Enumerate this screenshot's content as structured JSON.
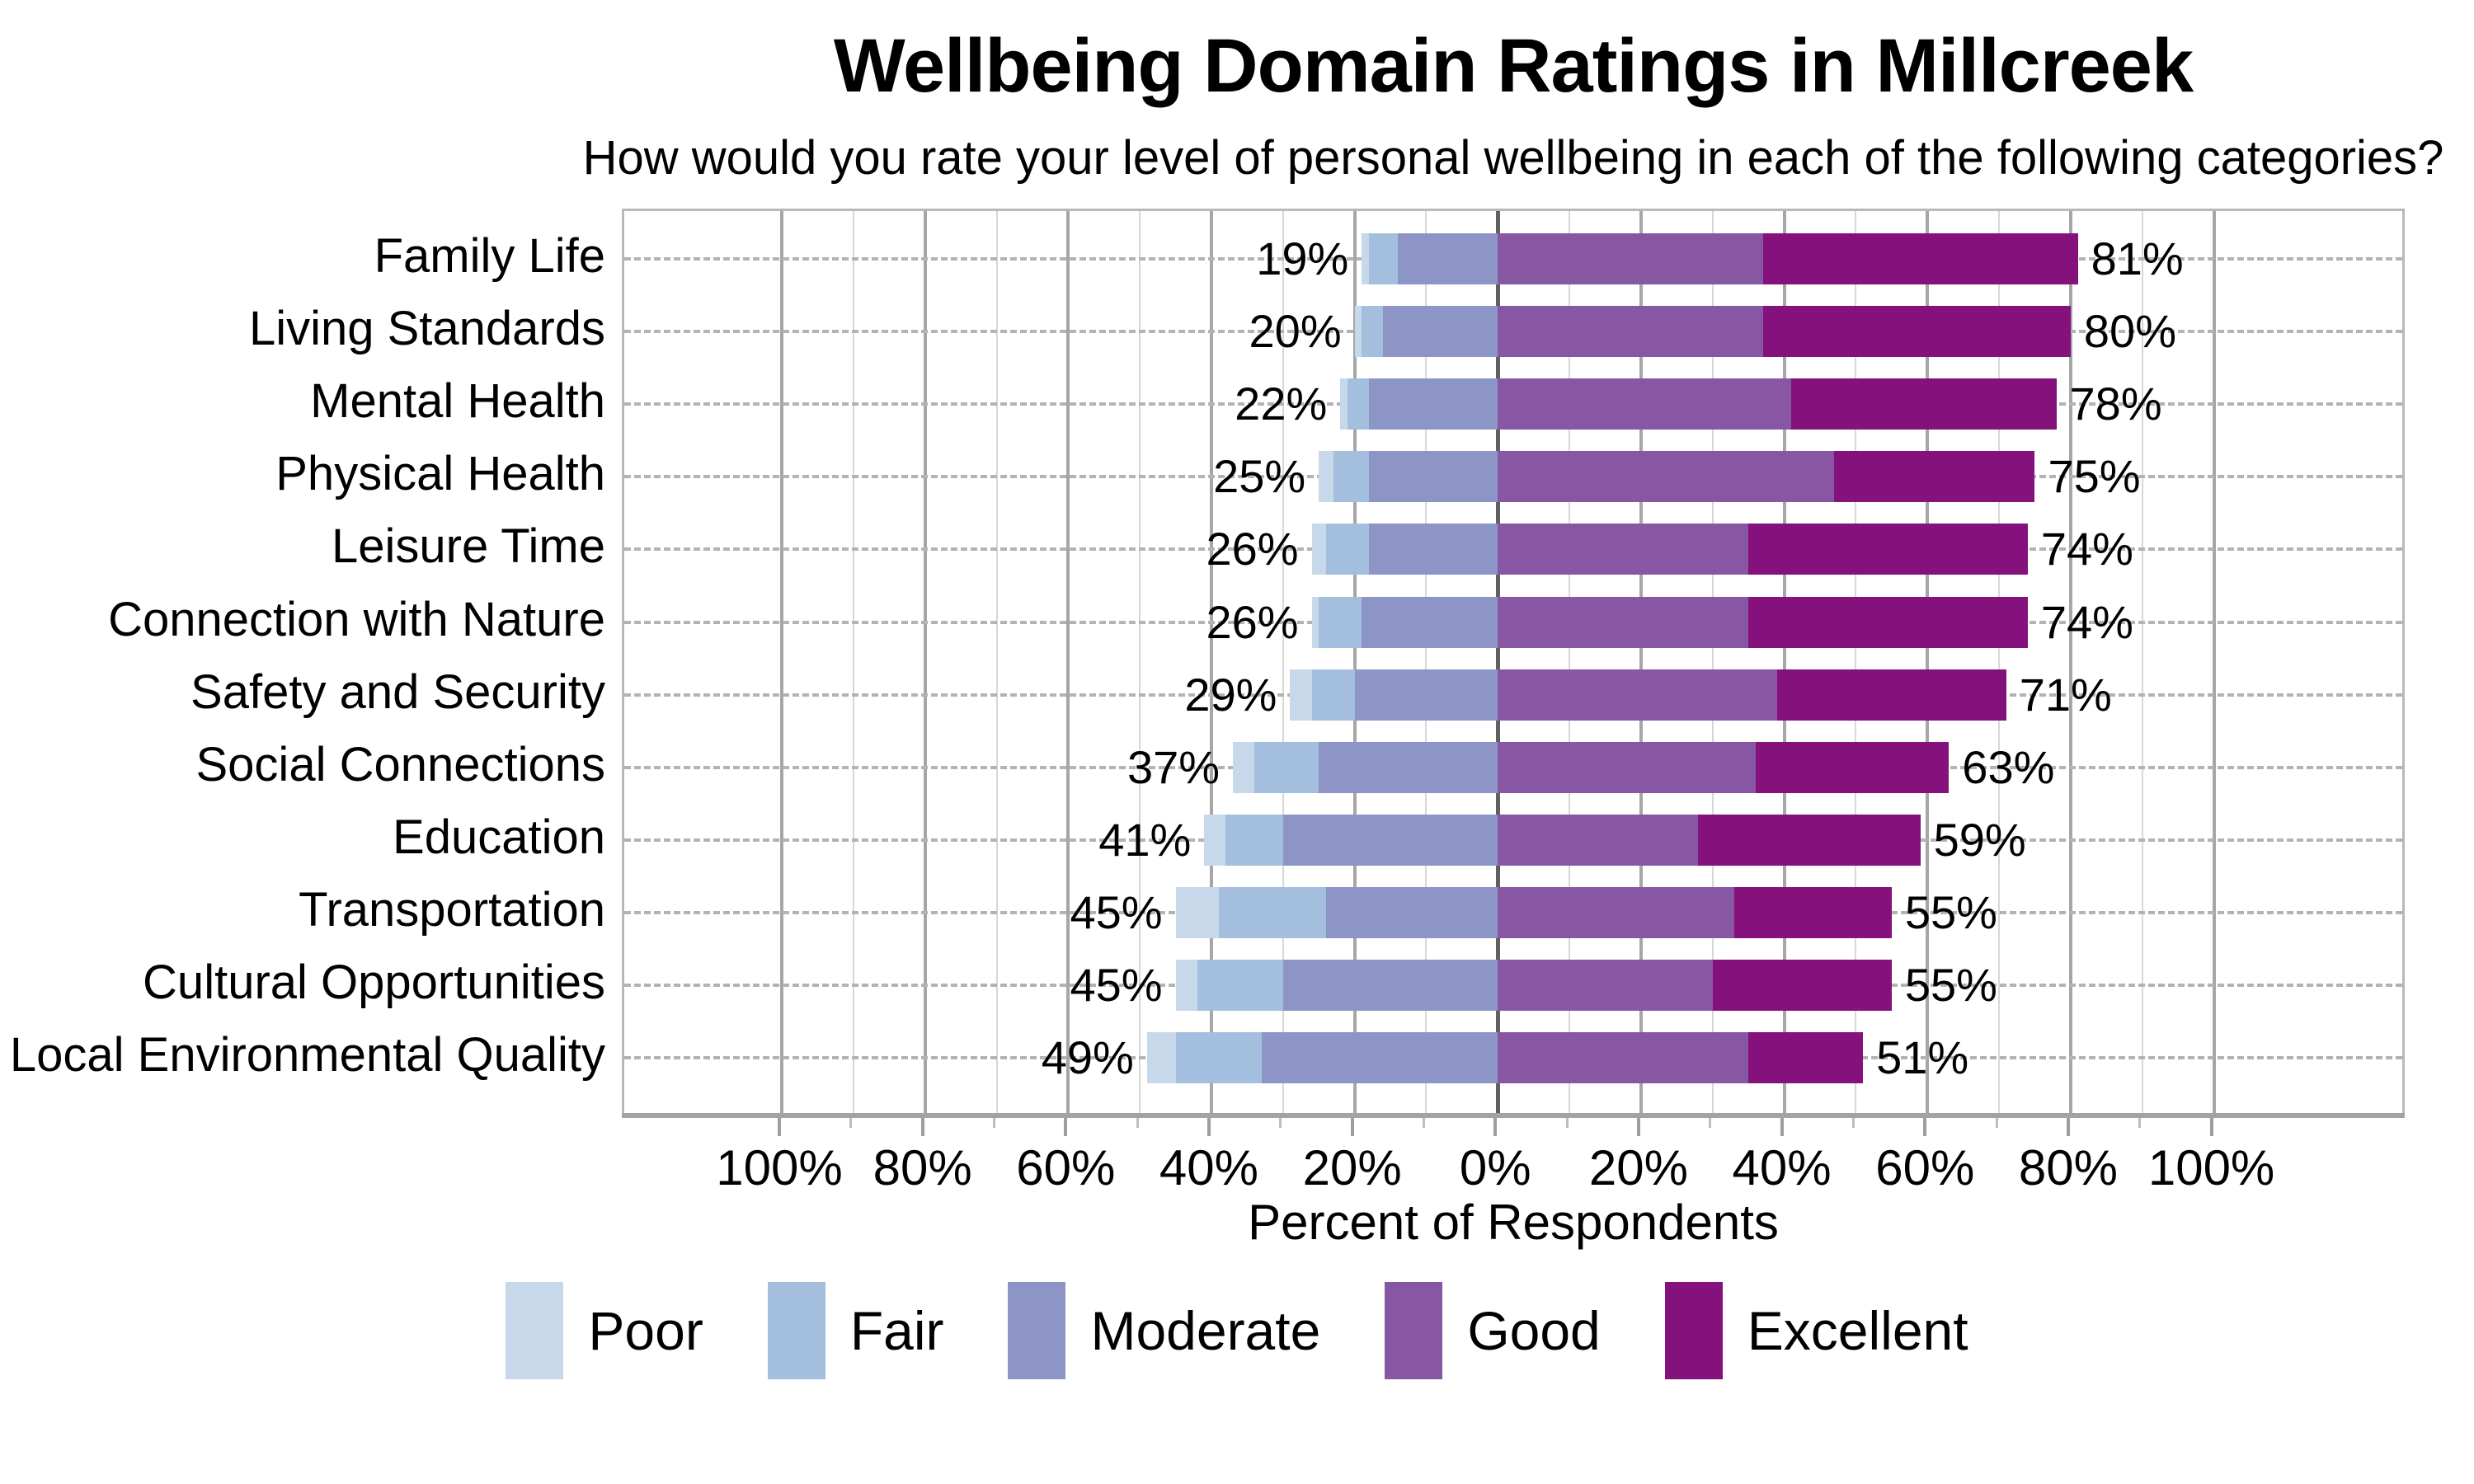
{
  "page": {
    "title": "Wellbeing Domain Ratings in Millcreek",
    "subtitle": "How would you rate your level of personal wellbeing in each of the following categories?"
  },
  "chart_data": {
    "type": "bar",
    "variant": "diverging-stacked-horizontal",
    "title": "Wellbeing Domain Ratings in Millcreek",
    "subtitle": "How would you rate your level of personal wellbeing in each of the following categories?",
    "xlabel": "Percent of Respondents",
    "categories": [
      "Family Life",
      "Living Standards",
      "Mental Health",
      "Physical Health",
      "Leisure Time",
      "Connection with Nature",
      "Safety and Security",
      "Social Connections",
      "Education",
      "Transportation",
      "Cultural Opportunities",
      "Local Environmental Quality"
    ],
    "series": [
      {
        "name": "Poor",
        "color": "#c7d8ea",
        "side": "left",
        "values": [
          1,
          1,
          1,
          2,
          2,
          1,
          3,
          3,
          3,
          6,
          3,
          4
        ]
      },
      {
        "name": "Fair",
        "color": "#a3bfdd",
        "side": "left",
        "values": [
          4,
          3,
          3,
          5,
          6,
          6,
          6,
          9,
          8,
          15,
          12,
          12
        ]
      },
      {
        "name": "Moderate",
        "color": "#8c95c6",
        "side": "left",
        "values": [
          14,
          16,
          18,
          18,
          18,
          19,
          20,
          25,
          30,
          24,
          30,
          33
        ]
      },
      {
        "name": "Good",
        "color": "#8857a4",
        "side": "right",
        "values": [
          37,
          37,
          41,
          47,
          35,
          35,
          39,
          36,
          28,
          33,
          30,
          35
        ]
      },
      {
        "name": "Excellent",
        "color": "#84117c",
        "side": "right",
        "values": [
          44,
          43,
          37,
          28,
          39,
          39,
          32,
          27,
          31,
          22,
          25,
          16
        ]
      }
    ],
    "left_total_labels": [
      "19%",
      "20%",
      "22%",
      "25%",
      "26%",
      "26%",
      "29%",
      "37%",
      "41%",
      "45%",
      "45%",
      "49%"
    ],
    "right_total_labels": [
      "81%",
      "80%",
      "78%",
      "75%",
      "74%",
      "74%",
      "71%",
      "63%",
      "59%",
      "55%",
      "55%",
      "51%"
    ],
    "x_ticks": [
      {
        "value": -100,
        "label": "100%"
      },
      {
        "value": -80,
        "label": "80%"
      },
      {
        "value": -60,
        "label": "60%"
      },
      {
        "value": -40,
        "label": "40%"
      },
      {
        "value": -20,
        "label": "20%"
      },
      {
        "value": 0,
        "label": "0%"
      },
      {
        "value": 20,
        "label": "20%"
      },
      {
        "value": 40,
        "label": "40%"
      },
      {
        "value": 60,
        "label": "60%"
      },
      {
        "value": 80,
        "label": "80%"
      },
      {
        "value": 100,
        "label": "100%"
      }
    ],
    "xlim": [
      -122,
      127
    ],
    "grid": {
      "vertical_minor_step": 10,
      "vertical_major_step": 20,
      "horizontal": "dashed-per-category",
      "zero_line": true
    },
    "legend": {
      "position": "bottom",
      "entries": [
        "Poor",
        "Fair",
        "Moderate",
        "Good",
        "Excellent"
      ]
    }
  }
}
